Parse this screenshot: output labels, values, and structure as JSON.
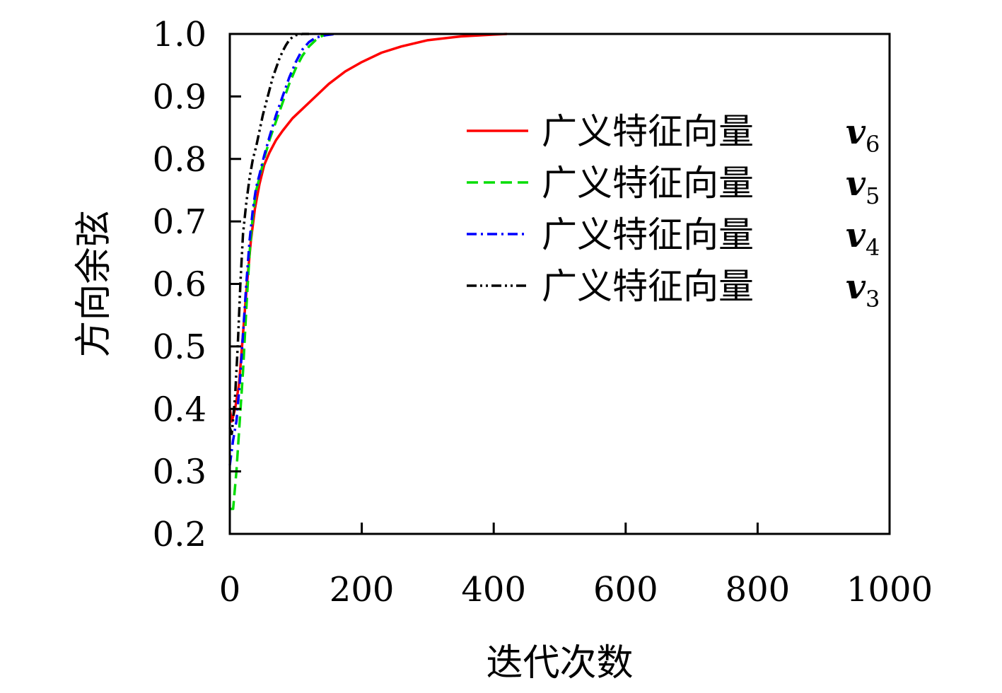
{
  "chart_data": {
    "type": "line",
    "xlabel": "迭代次数",
    "ylabel": "方向余弦",
    "xlim": [
      0,
      1000
    ],
    "ylim": [
      0.2,
      1.0
    ],
    "xticks": [
      0,
      200,
      400,
      600,
      800,
      1000
    ],
    "yticks": [
      0.2,
      0.3,
      0.4,
      0.5,
      0.6,
      0.7,
      0.8,
      0.9,
      1.0
    ],
    "xtick_labels": [
      "0",
      "200",
      "400",
      "600",
      "800",
      "1000"
    ],
    "ytick_labels": [
      "0.2",
      "0.3",
      "0.4",
      "0.5",
      "0.6",
      "0.7",
      "0.8",
      "0.9",
      "1.0"
    ],
    "grid": false,
    "legend_position": "top-right",
    "series": [
      {
        "name": "广义特征向量",
        "var": "v",
        "sub": "6",
        "color": "#ff0000",
        "dash": "solid",
        "x": [
          0,
          3,
          8,
          14,
          20,
          26,
          32,
          38,
          45,
          52,
          60,
          70,
          80,
          95,
          110,
          130,
          150,
          175,
          200,
          230,
          260,
          300,
          350,
          400,
          420
        ],
        "y": [
          0.4,
          0.38,
          0.4,
          0.44,
          0.52,
          0.6,
          0.67,
          0.72,
          0.76,
          0.79,
          0.81,
          0.83,
          0.845,
          0.865,
          0.88,
          0.9,
          0.92,
          0.94,
          0.955,
          0.97,
          0.98,
          0.99,
          0.996,
          0.999,
          1.0
        ]
      },
      {
        "name": "广义特征向量",
        "var": "v",
        "sub": "5",
        "color": "#00dd00",
        "dash": "dashed",
        "x": [
          0,
          5,
          10,
          15,
          20,
          25,
          30,
          35,
          40,
          45,
          52,
          60,
          70,
          80,
          90,
          100,
          110,
          120,
          130,
          140,
          150
        ],
        "y": [
          0.24,
          0.24,
          0.3,
          0.38,
          0.46,
          0.56,
          0.65,
          0.71,
          0.75,
          0.77,
          0.8,
          0.83,
          0.86,
          0.89,
          0.92,
          0.945,
          0.965,
          0.98,
          0.99,
          0.997,
          1.0
        ]
      },
      {
        "name": "广义特征向量",
        "var": "v",
        "sub": "4",
        "color": "#0000ff",
        "dash": "dashdot",
        "x": [
          0,
          5,
          10,
          15,
          20,
          25,
          30,
          35,
          40,
          45,
          52,
          60,
          70,
          80,
          90,
          100,
          110,
          120,
          130,
          145,
          160
        ],
        "y": [
          0.31,
          0.35,
          0.38,
          0.44,
          0.52,
          0.6,
          0.67,
          0.72,
          0.755,
          0.775,
          0.805,
          0.835,
          0.87,
          0.9,
          0.93,
          0.955,
          0.975,
          0.987,
          0.994,
          0.998,
          1.0
        ]
      },
      {
        "name": "广义特征向量",
        "var": "v",
        "sub": "3",
        "color": "#000000",
        "dash": "dashdotdot",
        "x": [
          0,
          3,
          8,
          12,
          16,
          20,
          25,
          30,
          35,
          40,
          45,
          50,
          55,
          60,
          65,
          70,
          75,
          80,
          85,
          90,
          95,
          100,
          110,
          120
        ],
        "y": [
          0.37,
          0.36,
          0.42,
          0.5,
          0.6,
          0.68,
          0.73,
          0.77,
          0.8,
          0.82,
          0.845,
          0.87,
          0.89,
          0.91,
          0.93,
          0.945,
          0.96,
          0.972,
          0.982,
          0.99,
          0.995,
          0.998,
          1.0,
          1.0
        ]
      }
    ]
  }
}
